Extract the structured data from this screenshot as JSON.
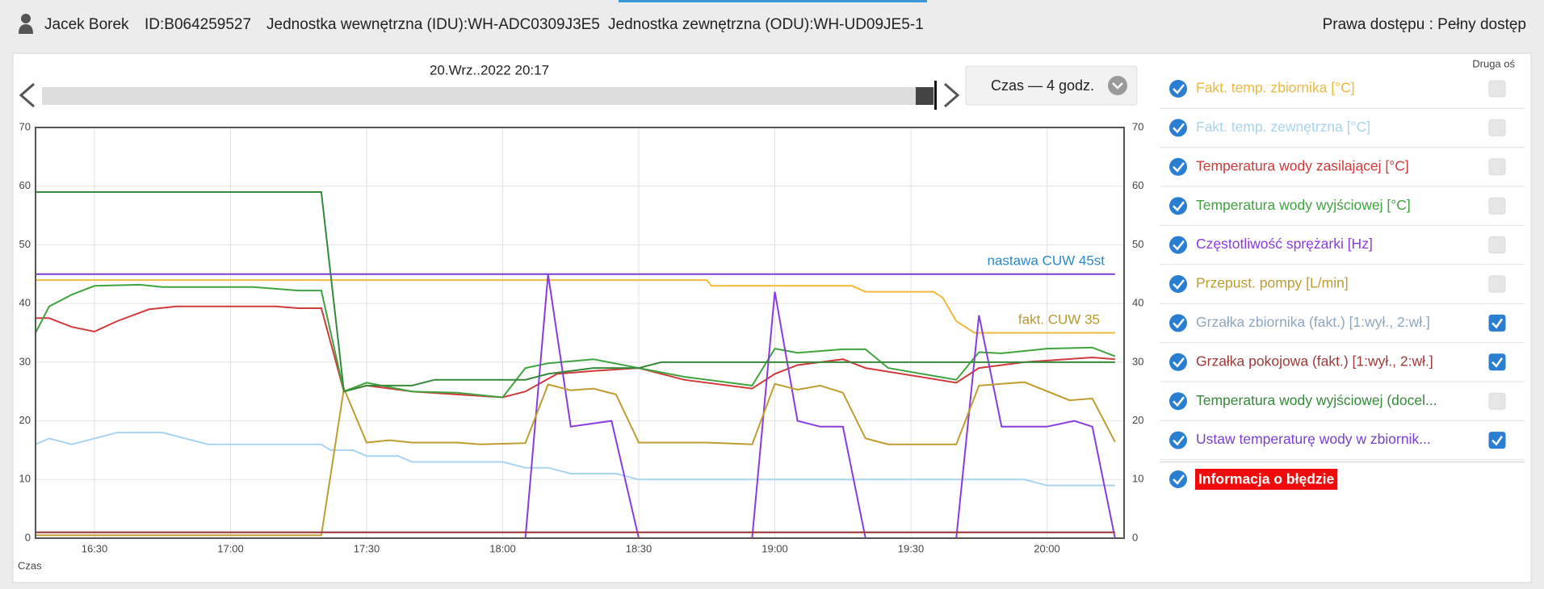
{
  "header": {
    "user": "Jacek Borek",
    "id": "ID:B064259527",
    "idu": "Jednostka wewnętrzna (IDU):WH-ADC0309J3E5",
    "odu": "Jednostka zewnętrzna (ODU):WH-UD09JE5-1",
    "access": "Prawa dostępu : Pełny dostęp"
  },
  "slider": {
    "label": "20.Wrz..2022 20:17"
  },
  "period": {
    "label": "Czas — 4 godz."
  },
  "second_axis_label": "Druga oś",
  "error_item": "Informacja o błędzie",
  "chart_data": {
    "type": "line",
    "xlabel": "Czas",
    "xlim": [
      "16:17",
      "20:17"
    ],
    "xticks": [
      "16:30",
      "17:00",
      "17:30",
      "18:00",
      "18:30",
      "19:00",
      "19:30",
      "20:00"
    ],
    "ylim": [
      0,
      70
    ],
    "yticks": [
      0,
      10,
      20,
      30,
      40,
      50,
      60,
      70
    ],
    "y2lim": [
      0,
      70
    ],
    "y2ticks": [
      0,
      10,
      20,
      30,
      40,
      50,
      60,
      70
    ],
    "grid": true,
    "annotations": [
      "nastawa CUW 45st",
      "fakt.  CUW 35"
    ],
    "series": [
      {
        "name": "Fakt. temp. zbiornika [°C]",
        "color": "#f0b93a",
        "x": [
          "16:17",
          "18:45",
          "18:46",
          "19:17",
          "19:20",
          "19:35",
          "19:37",
          "19:40",
          "19:44",
          "20:15"
        ],
        "values": [
          44,
          44,
          43,
          43,
          42,
          42,
          41,
          37,
          35,
          35
        ]
      },
      {
        "name": "Fakt. temp. zewnętrzna [°C]",
        "color": "#a8d4f0",
        "x": [
          "16:17",
          "16:20",
          "16:25",
          "16:35",
          "16:45",
          "16:55",
          "17:20",
          "17:22",
          "17:27",
          "17:30",
          "17:37",
          "17:40",
          "18:00",
          "18:05",
          "18:10",
          "18:15",
          "18:25",
          "18:30",
          "19:55",
          "20:00",
          "20:15"
        ],
        "values": [
          16,
          17,
          16,
          18,
          18,
          16,
          16,
          15,
          15,
          14,
          14,
          13,
          13,
          12,
          12,
          11,
          11,
          10,
          10,
          9,
          9
        ]
      },
      {
        "name": "Temperatura wody zasilającej [°C]",
        "color": "#d03a3a",
        "x": [
          "16:17",
          "16:20",
          "16:25",
          "16:30",
          "16:35",
          "16:42",
          "16:48",
          "17:10",
          "17:15",
          "17:20",
          "17:25",
          "17:30",
          "17:40",
          "17:50",
          "18:00",
          "18:05",
          "18:12",
          "18:20",
          "18:30",
          "18:40",
          "18:55",
          "19:00",
          "19:05",
          "19:10",
          "19:15",
          "19:20",
          "19:40",
          "19:45",
          "19:55",
          "20:10",
          "20:15"
        ],
        "values": [
          37.5,
          37.5,
          36,
          35.2,
          37,
          39,
          39.5,
          39.5,
          39.2,
          39.2,
          25,
          26,
          25,
          24.5,
          24,
          25,
          28,
          28.5,
          29,
          27,
          25.5,
          28,
          29.5,
          30,
          30.5,
          29,
          26.5,
          29,
          30,
          30.8,
          30.5
        ]
      },
      {
        "name": "Temperatura wody wyjściowej [°C]",
        "color": "#3fa33f",
        "x": [
          "16:17",
          "16:20",
          "16:25",
          "16:30",
          "16:40",
          "16:45",
          "17:05",
          "17:15",
          "17:20",
          "17:25",
          "17:30",
          "17:40",
          "17:50",
          "18:00",
          "18:05",
          "18:10",
          "18:20",
          "18:30",
          "18:40",
          "18:55",
          "19:00",
          "19:05",
          "19:15",
          "19:20",
          "19:25",
          "19:40",
          "19:45",
          "19:50",
          "20:00",
          "20:10",
          "20:15"
        ],
        "values": [
          35,
          39.5,
          41.5,
          43,
          43.2,
          42.8,
          42.8,
          42.2,
          42.2,
          25,
          26.5,
          25,
          24.8,
          24,
          29,
          29.8,
          30.5,
          29,
          27.5,
          26,
          32.3,
          31.6,
          32.2,
          32.2,
          29,
          27,
          31.7,
          31.5,
          32.3,
          32.5,
          31
        ]
      },
      {
        "name": "Częstotliwość sprężarki [Hz]",
        "color": "#8a3be0",
        "x": [
          "16:17",
          "18:05",
          "18:10",
          "18:15",
          "18:24",
          "18:30",
          "18:55",
          "19:00",
          "19:05",
          "19:10",
          "19:15",
          "19:20",
          "19:40",
          "19:45",
          "19:50",
          "20:00",
          "20:06",
          "20:10",
          "20:15"
        ],
        "values": [
          0,
          0,
          45,
          19,
          20,
          0,
          0,
          42,
          20,
          19,
          19,
          0,
          0,
          38,
          19,
          19,
          20,
          19,
          0
        ]
      },
      {
        "name": "Przepust. pompy [L/min]",
        "color": "#bf9c30",
        "x": [
          "16:17",
          "17:20",
          "17:25",
          "17:30",
          "17:35",
          "17:40",
          "17:50",
          "17:55",
          "18:05",
          "18:10",
          "18:15",
          "18:20",
          "18:25",
          "18:30",
          "18:45",
          "18:55",
          "19:00",
          "19:05",
          "19:10",
          "19:15",
          "19:20",
          "19:25",
          "19:40",
          "19:45",
          "19:50",
          "19:55",
          "20:05",
          "20:10",
          "20:15"
        ],
        "values": [
          0.5,
          0.5,
          25.5,
          16.3,
          16.7,
          16.3,
          16.3,
          16,
          16.2,
          26.2,
          25.2,
          25.5,
          24.5,
          16.3,
          16.3,
          16,
          26.3,
          25.3,
          26,
          24.8,
          17,
          16,
          16,
          26,
          26.3,
          26.6,
          23.5,
          23.8,
          16.4
        ]
      },
      {
        "name": "Grzałka zbiornika (fakt.) [1:wył., 2:wł.]",
        "color": "#8fa7bf",
        "axis": "y2",
        "x": [
          "16:17",
          "20:15"
        ],
        "values": [
          1,
          1
        ]
      },
      {
        "name": "Grzałka pokojowa (fakt.) [1:wył., 2:wł.]",
        "color": "#a03838",
        "axis": "y2",
        "x": [
          "16:17",
          "20:15"
        ],
        "values": [
          1,
          1
        ]
      },
      {
        "name": "Temperatura wody wyjściowej (docel...",
        "color": "#35893a",
        "x": [
          "16:17",
          "17:20",
          "17:25",
          "17:30",
          "17:40",
          "17:45",
          "18:05",
          "18:10",
          "18:20",
          "18:30",
          "18:35",
          "20:15"
        ],
        "values": [
          59,
          59,
          25,
          26,
          26,
          27,
          27,
          28,
          29,
          29,
          30,
          30
        ]
      },
      {
        "name": "Ustaw temperaturę wody w zbiornik...",
        "color": "#7a3fd0",
        "axis": "y2",
        "x": [
          "16:17",
          "20:15"
        ],
        "values": [
          45,
          45
        ]
      }
    ]
  }
}
